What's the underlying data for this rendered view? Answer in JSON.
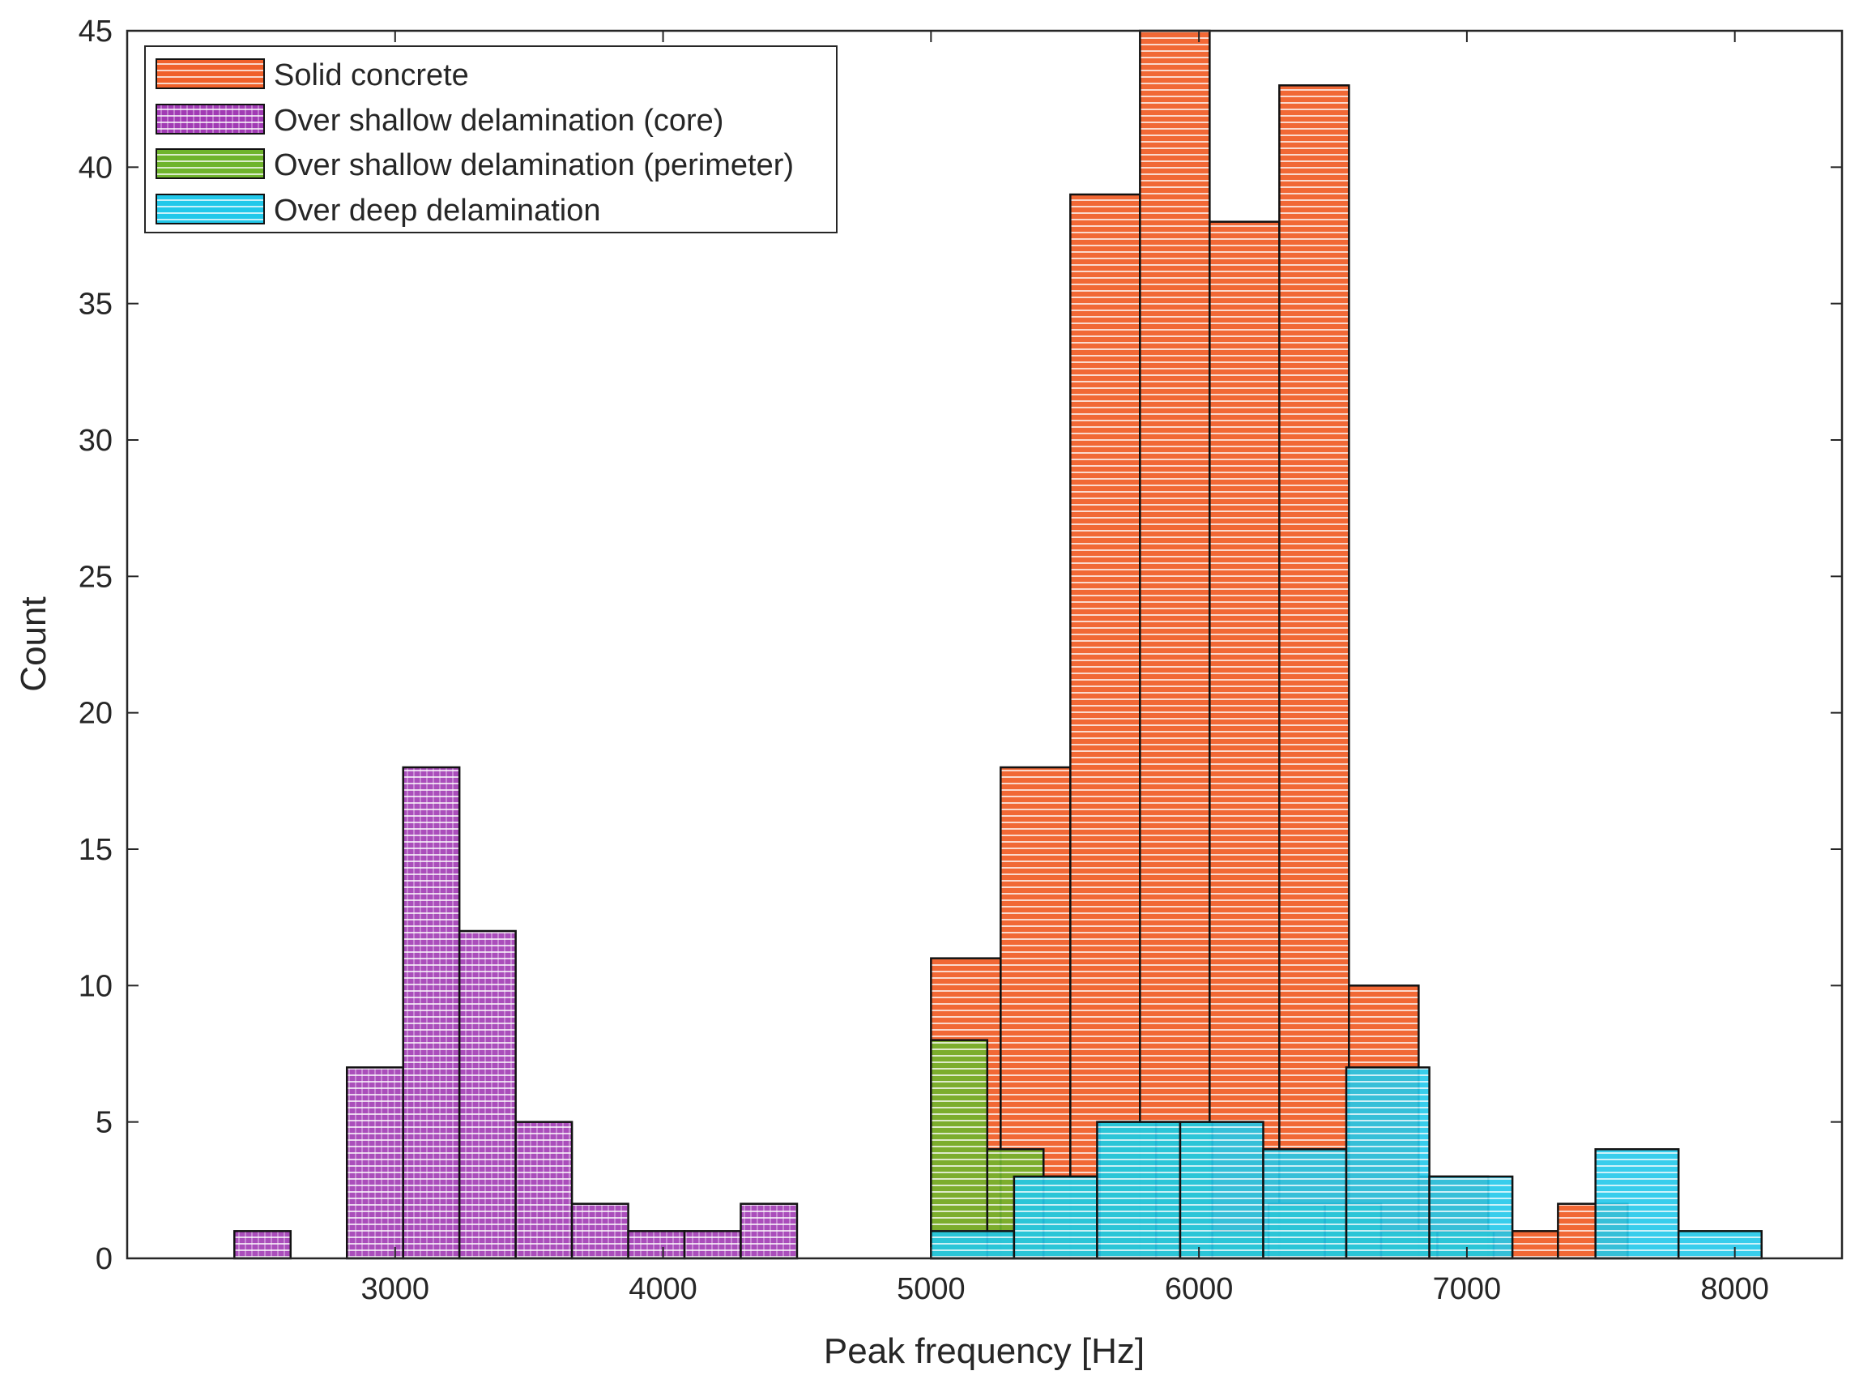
{
  "chart_data": {
    "type": "histogram",
    "title": "",
    "xlabel": "Peak frequency [Hz]",
    "ylabel": "Count",
    "xlim": [
      2000,
      8400
    ],
    "ylim": [
      0,
      45
    ],
    "xticks": [
      3000,
      4000,
      5000,
      6000,
      7000,
      8000
    ],
    "yticks": [
      0,
      5,
      10,
      15,
      20,
      25,
      30,
      35,
      40,
      45
    ],
    "grid": false,
    "legend_position": "top-left",
    "series": [
      {
        "name": "Solid concrete",
        "color": "#f0602a",
        "edges": [
          5000,
          5260,
          5520,
          5780,
          6040,
          6300,
          6560,
          6820,
          7080,
          7340,
          7600
        ],
        "values": [
          11,
          18,
          39,
          45,
          38,
          43,
          10,
          3,
          1,
          2
        ]
      },
      {
        "name": "Over shallow delamination (core)",
        "color": "#a13bb4",
        "edges": [
          2400,
          2610,
          2820,
          3030,
          3240,
          3450,
          3660,
          3870,
          4080,
          4290,
          4500
        ],
        "values": [
          1,
          0,
          7,
          18,
          12,
          5,
          2,
          1,
          1,
          2
        ]
      },
      {
        "name": "Over shallow delamination (perimeter)",
        "color": "#6fb42c",
        "edges": [
          5000,
          5210,
          5420,
          5630,
          5840,
          6050,
          6260,
          6470,
          6680,
          6890,
          7100
        ],
        "values": [
          8,
          4,
          3,
          5,
          5,
          1,
          2,
          2,
          1,
          1
        ]
      },
      {
        "name": "Over deep delamination",
        "color": "#22c8ea",
        "edges": [
          5000,
          5310,
          5620,
          5930,
          6240,
          6550,
          6860,
          7170,
          7480,
          7790,
          8100
        ],
        "values": [
          1,
          3,
          5,
          5,
          4,
          7,
          3,
          0,
          4,
          1
        ]
      }
    ]
  }
}
